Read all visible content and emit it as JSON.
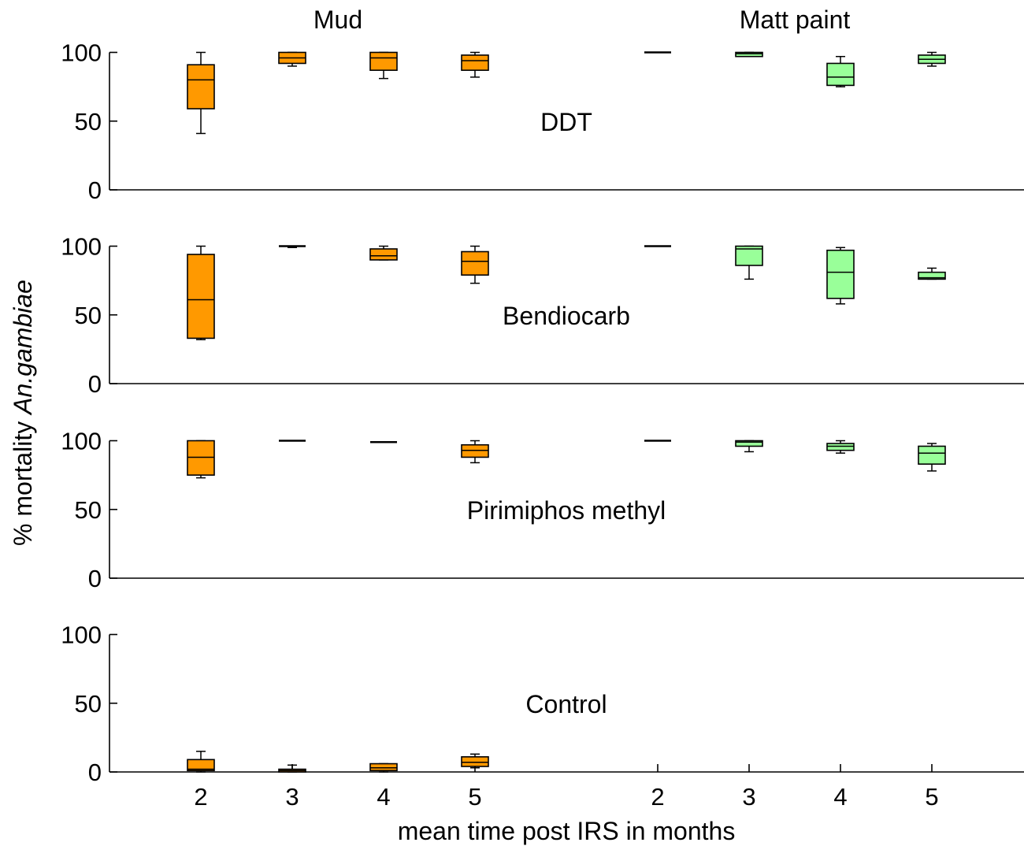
{
  "chart_data": {
    "type": "box",
    "group_labels": [
      "Mud",
      "Matt paint"
    ],
    "xlabel": "mean time post IRS in months",
    "ylabel_prefix": "% mortality ",
    "ylabel_species": "An.gambiae",
    "x_ticks": [
      "2",
      "3",
      "4",
      "5"
    ],
    "y_ticks": [
      "0",
      "50",
      "100"
    ],
    "ylim": [
      0,
      100
    ],
    "colors": {
      "Mud": "#FF9900",
      "Matt paint": "#99FF99"
    },
    "panels": [
      {
        "label": "DDT",
        "mud": [
          {
            "month": 2,
            "min": 41,
            "q1": 59,
            "median": 80,
            "q3": 91,
            "max": 100
          },
          {
            "month": 3,
            "min": 90,
            "q1": 92,
            "median": 96,
            "q3": 100,
            "max": 100
          },
          {
            "month": 4,
            "min": 81,
            "q1": 87,
            "median": 96,
            "q3": 100,
            "max": 100
          },
          {
            "month": 5,
            "min": 82,
            "q1": 87,
            "median": 94,
            "q3": 98,
            "max": 100
          }
        ],
        "matt_paint": [
          {
            "month": 2,
            "min": 100,
            "q1": 100,
            "median": 100,
            "q3": 100,
            "max": 100
          },
          {
            "month": 3,
            "min": 97,
            "q1": 97,
            "median": 99,
            "q3": 100,
            "max": 100
          },
          {
            "month": 4,
            "min": 75,
            "q1": 76,
            "median": 82,
            "q3": 92,
            "max": 97
          },
          {
            "month": 5,
            "min": 90,
            "q1": 92,
            "median": 95,
            "q3": 98,
            "max": 100
          }
        ]
      },
      {
        "label": "Bendiocarb",
        "mud": [
          {
            "month": 2,
            "min": 32,
            "q1": 33,
            "median": 61,
            "q3": 94,
            "max": 100
          },
          {
            "month": 3,
            "min": 99,
            "q1": 100,
            "median": 100,
            "q3": 100,
            "max": 100
          },
          {
            "month": 4,
            "min": 90,
            "q1": 90,
            "median": 93,
            "q3": 98,
            "max": 100
          },
          {
            "month": 5,
            "min": 73,
            "q1": 79,
            "median": 89,
            "q3": 96,
            "max": 100
          }
        ],
        "matt_paint": [
          {
            "month": 2,
            "min": 100,
            "q1": 100,
            "median": 100,
            "q3": 100,
            "max": 100
          },
          {
            "month": 3,
            "min": 76,
            "q1": 86,
            "median": 98,
            "q3": 100,
            "max": 100
          },
          {
            "month": 4,
            "min": 58,
            "q1": 62,
            "median": 81,
            "q3": 97,
            "max": 99
          },
          {
            "month": 5,
            "min": 76,
            "q1": 76,
            "median": 77,
            "q3": 81,
            "max": 84
          }
        ]
      },
      {
        "label": "Pirimiphos methyl",
        "mud": [
          {
            "month": 2,
            "min": 73,
            "q1": 75,
            "median": 88,
            "q3": 100,
            "max": 100
          },
          {
            "month": 3,
            "min": 100,
            "q1": 100,
            "median": 100,
            "q3": 100,
            "max": 100
          },
          {
            "month": 4,
            "min": 99,
            "q1": 99,
            "median": 99,
            "q3": 99,
            "max": 99
          },
          {
            "month": 5,
            "min": 84,
            "q1": 88,
            "median": 93,
            "q3": 97,
            "max": 100
          }
        ],
        "matt_paint": [
          {
            "month": 2,
            "min": 100,
            "q1": 100,
            "median": 100,
            "q3": 100,
            "max": 100
          },
          {
            "month": 3,
            "min": 92,
            "q1": 96,
            "median": 99,
            "q3": 100,
            "max": 100
          },
          {
            "month": 4,
            "min": 91,
            "q1": 93,
            "median": 96,
            "q3": 98,
            "max": 100
          },
          {
            "month": 5,
            "min": 78,
            "q1": 83,
            "median": 91,
            "q3": 96,
            "max": 98
          }
        ]
      },
      {
        "label": "Control",
        "mud": [
          {
            "month": 2,
            "min": 0,
            "q1": 1,
            "median": 2,
            "q3": 9,
            "max": 15
          },
          {
            "month": 3,
            "min": 0,
            "q1": 0,
            "median": 1,
            "q3": 2,
            "max": 5
          },
          {
            "month": 4,
            "min": 0,
            "q1": 1,
            "median": 3,
            "q3": 6,
            "max": 6
          },
          {
            "month": 5,
            "min": 3,
            "q1": 4,
            "median": 7,
            "q3": 11,
            "max": 13
          }
        ],
        "matt_paint": []
      }
    ]
  }
}
